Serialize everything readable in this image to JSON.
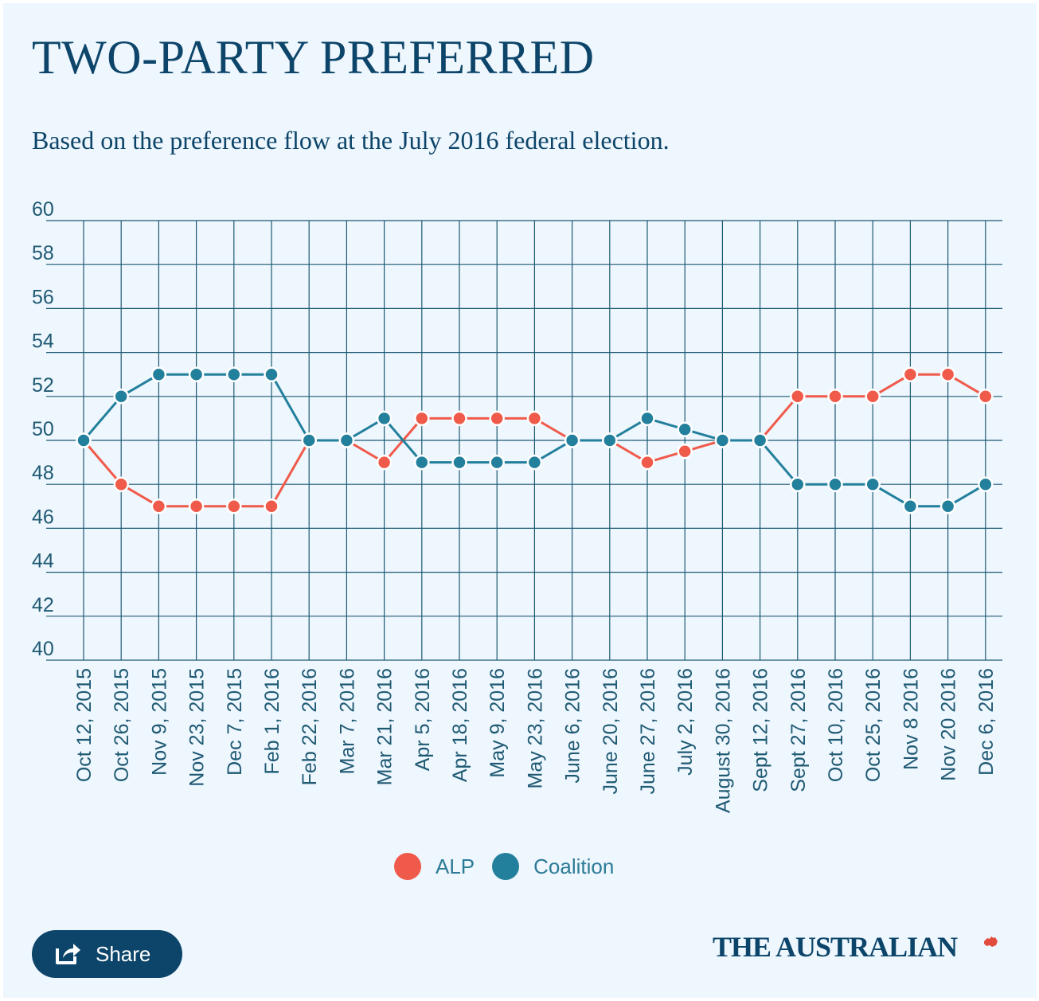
{
  "title": "TWO-PARTY PREFERRED",
  "subtitle": "Based on the preference flow at the July 2016 federal election.",
  "colors": {
    "alp": "#f05a4a",
    "coalition": "#23809c",
    "grid": "#1d5a73",
    "text": "#0c4569"
  },
  "chart_data": {
    "type": "line",
    "categories": [
      "Oct 12, 2015",
      "Oct 26, 2015",
      "Nov 9, 2015",
      "Nov 23, 2015",
      "Dec 7, 2015",
      "Feb 1, 2016",
      "Feb 22, 2016",
      "Mar 7, 2016",
      "Mar 21, 2016",
      "Apr 5, 2016",
      "Apr 18, 2016",
      "May 9, 2016",
      "May 23, 2016",
      "June 6, 2016",
      "June 20, 2016",
      "June 27, 2016",
      "July 2, 2016",
      "August 30, 2016",
      "Sept 12, 2016",
      "Sept 27, 2016",
      "Oct 10, 2016",
      "Oct 25, 2016",
      "Nov 8 2016",
      "Nov 20 2016",
      "Dec 6, 2016"
    ],
    "series": [
      {
        "name": "ALP",
        "color": "#f05a4a",
        "values": [
          50,
          48,
          47,
          47,
          47,
          47,
          50,
          50,
          49,
          51,
          51,
          51,
          51,
          50,
          50,
          49,
          49.5,
          50,
          50,
          52,
          52,
          52,
          53,
          53,
          52
        ]
      },
      {
        "name": "Coalition",
        "color": "#23809c",
        "values": [
          50,
          52,
          53,
          53,
          53,
          53,
          50,
          50,
          51,
          49,
          49,
          49,
          49,
          50,
          50,
          51,
          50.5,
          50,
          50,
          48,
          48,
          48,
          47,
          47,
          48
        ]
      }
    ],
    "ylim": [
      40,
      60
    ],
    "yticks": [
      40,
      42,
      44,
      46,
      48,
      50,
      52,
      54,
      56,
      58,
      60
    ],
    "grid": true,
    "legend": "bottom-center"
  },
  "share_label": "Share",
  "brand": "THE AUSTRALIAN"
}
